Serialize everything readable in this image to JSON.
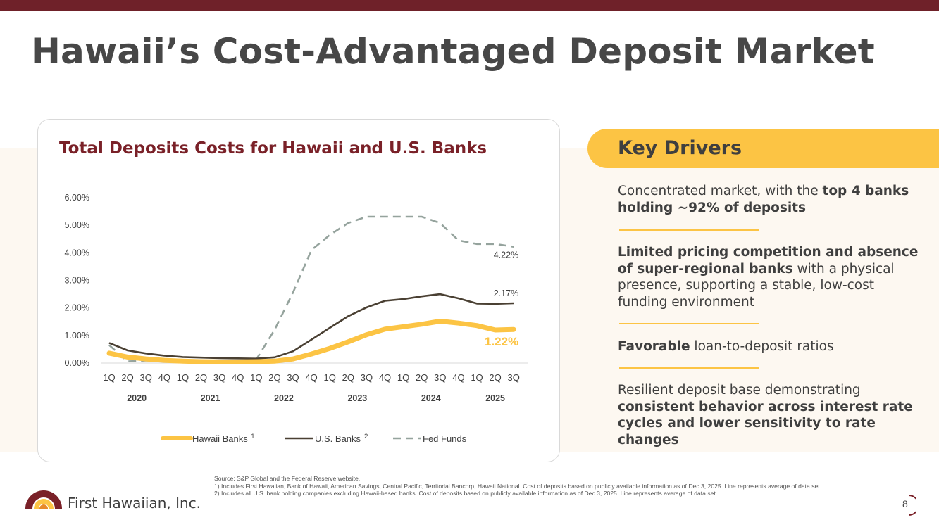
{
  "page": {
    "title": "Hawaii’s Cost-Advantaged Deposit Market",
    "page_number": "8",
    "colors": {
      "brand_maroon": "#6f2129",
      "accent_yellow": "#fcc444",
      "cream": "#fdf8f1"
    }
  },
  "chart_data": {
    "type": "line",
    "title": "Total Deposits Costs for Hawaii and U.S. Banks",
    "x": [
      "1Q",
      "2Q",
      "3Q",
      "4Q",
      "1Q",
      "2Q",
      "3Q",
      "4Q",
      "1Q",
      "2Q",
      "3Q",
      "4Q",
      "1Q",
      "2Q",
      "3Q",
      "4Q",
      "1Q",
      "2Q",
      "3Q",
      "4Q",
      "1Q",
      "2Q",
      "3Q"
    ],
    "years": [
      {
        "label": "2020",
        "start": 0,
        "end": 3
      },
      {
        "label": "2021",
        "start": 4,
        "end": 7
      },
      {
        "label": "2022",
        "start": 8,
        "end": 11
      },
      {
        "label": "2023",
        "start": 12,
        "end": 15
      },
      {
        "label": "2024",
        "start": 16,
        "end": 19
      },
      {
        "label": "2025",
        "start": 20,
        "end": 22
      }
    ],
    "y_ticks": [
      "0.00%",
      "1.00%",
      "2.00%",
      "3.00%",
      "4.00%",
      "5.00%",
      "6.00%"
    ],
    "ylim": [
      0,
      6
    ],
    "series": [
      {
        "name": "Hawaii Banks",
        "superscript": "1",
        "color": "#fcc444",
        "style": "thick",
        "values": [
          0.36,
          0.22,
          0.15,
          0.1,
          0.07,
          0.05,
          0.04,
          0.04,
          0.05,
          0.07,
          0.15,
          0.33,
          0.53,
          0.77,
          1.03,
          1.23,
          1.32,
          1.41,
          1.52,
          1.45,
          1.36,
          1.2,
          1.22
        ],
        "end_label": "1.22%"
      },
      {
        "name": "U.S. Banks",
        "superscript": "2",
        "color": "#4a4033",
        "style": "solid",
        "values": [
          0.73,
          0.46,
          0.35,
          0.27,
          0.22,
          0.2,
          0.18,
          0.17,
          0.16,
          0.21,
          0.43,
          0.85,
          1.28,
          1.7,
          2.02,
          2.26,
          2.32,
          2.42,
          2.5,
          2.35,
          2.16,
          2.15,
          2.17
        ],
        "end_label": "2.17%"
      },
      {
        "name": "Fed Funds",
        "superscript": "",
        "color": "#95a39d",
        "style": "dashed",
        "values": [
          0.65,
          0.06,
          0.09,
          0.09,
          0.07,
          0.07,
          0.08,
          0.08,
          0.13,
          1.21,
          2.56,
          4.1,
          4.65,
          5.08,
          5.31,
          5.31,
          5.31,
          5.31,
          5.08,
          4.45,
          4.32,
          4.32,
          4.22
        ],
        "end_label": "4.22%"
      }
    ],
    "legend": "bottom-center",
    "grid": false
  },
  "drivers": {
    "title": "Key Drivers",
    "items": [
      {
        "pre": "Concentrated market, with the ",
        "bold": "top 4 banks holding ~92% of deposits",
        "post": ""
      },
      {
        "pre": "",
        "bold": "Limited pricing competition and absence of super-regional banks",
        "post": " with a physical presence, supporting a stable, low-cost funding environment"
      },
      {
        "pre": "",
        "bold": "Favorable",
        "post": " loan-to-deposit ratios"
      },
      {
        "pre": "Resilient deposit base demonstrating ",
        "bold": "consistent behavior across interest rate cycles and lower sensitivity to rate changes",
        "post": ""
      }
    ]
  },
  "footnotes": {
    "source": "Source: S&P Global and the Federal Reserve website.",
    "note1": "1) Includes First Hawaiian, Bank of Hawaii, American Savings, Central Pacific, Territorial Bancorp, Hawaii National. Cost of deposits based on publicly available information as of Dec 3, 2025. Line represents average of data set.",
    "note2": "2) Includes all U.S. bank holding companies excluding Hawaii-based banks. Cost of deposits based on publicly available information as of Dec 3, 2025. Line represents average of data set."
  },
  "logo": {
    "text": "First Hawaiian, Inc."
  }
}
